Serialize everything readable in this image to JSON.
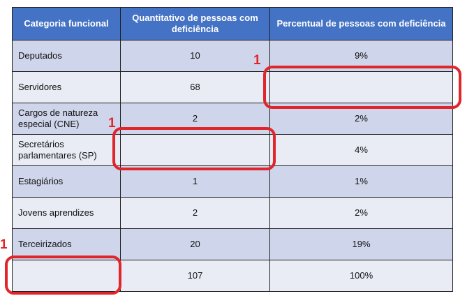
{
  "table": {
    "headers": {
      "category": "Categoria funcional",
      "quantity": "Quantitativo de pessoas com deficiência",
      "percent": "Percentual de pessoas com deficiência"
    },
    "rows": [
      {
        "category": "Deputados",
        "quantity": "10",
        "percent": "9%"
      },
      {
        "category": "Servidores",
        "quantity": "68",
        "percent": ""
      },
      {
        "category": "Cargos de natureza especial (CNE)",
        "quantity": "2",
        "percent": "2%"
      },
      {
        "category": "Secretários parlamentares (SP)",
        "quantity": "",
        "percent": "4%"
      },
      {
        "category": "Estagiários",
        "quantity": "1",
        "percent": "1%"
      },
      {
        "category": "Jovens aprendizes",
        "quantity": "2",
        "percent": "2%"
      },
      {
        "category": "Terceirizados",
        "quantity": "20",
        "percent": "19%"
      },
      {
        "category": "",
        "quantity": "107",
        "percent": "100%"
      }
    ]
  },
  "annotations": {
    "marker_label": "1",
    "color": "#e0262b"
  },
  "colors": {
    "header_bg": "#4472c4",
    "row_dark": "#cfd5ea",
    "row_light": "#e9ebf5"
  }
}
